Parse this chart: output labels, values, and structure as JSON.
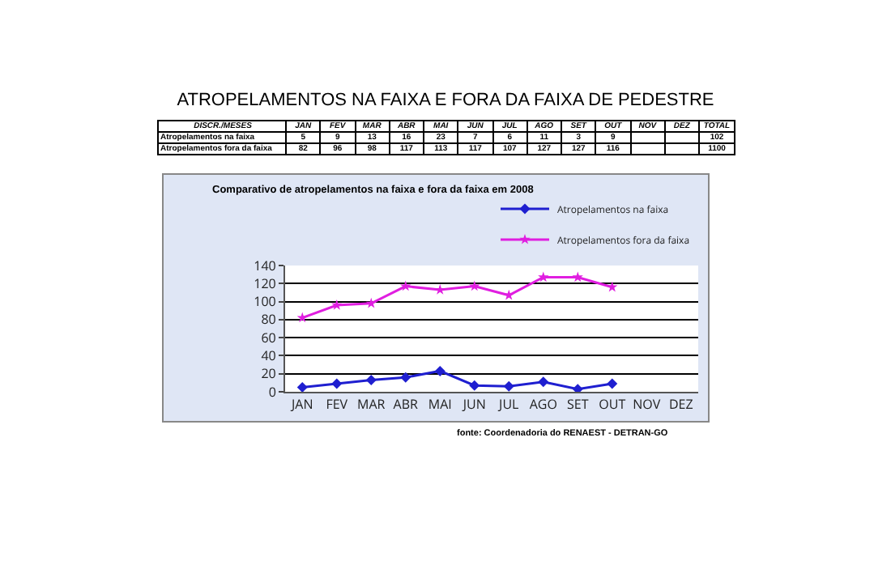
{
  "chart_data": {
    "type": "line",
    "title": "ATROPELAMENTOS NA FAIXA E FORA DA FAIXA DE PEDESTRE",
    "subtitle": "Comparativo de atropelamentos na faixa e fora da faixa em 2008",
    "categories": [
      "JAN",
      "FEV",
      "MAR",
      "ABR",
      "MAI",
      "JUN",
      "JUL",
      "AGO",
      "SET",
      "OUT",
      "NOV",
      "DEZ"
    ],
    "series": [
      {
        "name": "Atropelamentos na faixa",
        "color": "#1f1fd0",
        "marker": "diamond",
        "values": [
          5,
          9,
          13,
          16,
          23,
          7,
          6,
          11,
          3,
          9,
          null,
          null
        ]
      },
      {
        "name": "Atropelamentos fora da faixa",
        "color": "#e01ee0",
        "marker": "star",
        "values": [
          82,
          96,
          98,
          117,
          113,
          117,
          107,
          127,
          127,
          116,
          null,
          null
        ]
      }
    ],
    "ylim": [
      0,
      140
    ],
    "yticks": [
      0,
      20,
      40,
      60,
      80,
      100,
      120,
      140
    ],
    "grid": "y",
    "legend": "top right",
    "data_labels": true,
    "annotations": [
      "DISCR./MESES",
      "TOTAL",
      "102",
      "1100",
      "fonte: Coordenadoria do RENAEST - DETRAN-GO"
    ]
  }
}
